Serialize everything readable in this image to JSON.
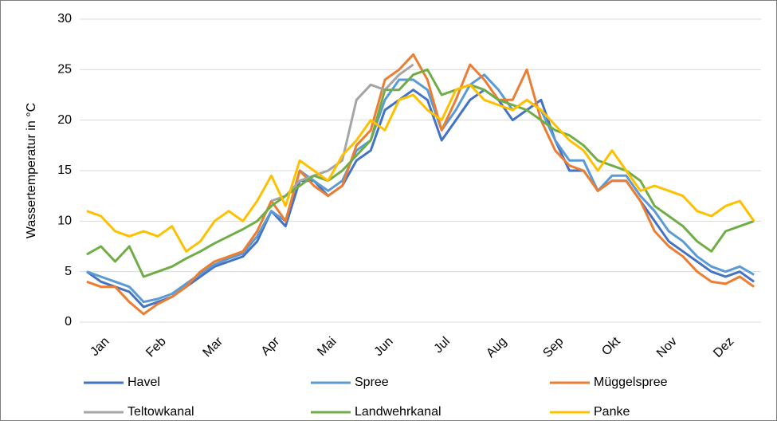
{
  "chart_data": {
    "type": "line",
    "y_label": "Wassertemperatur in °C",
    "categories": [
      null,
      "Jan",
      null,
      null,
      null,
      "Feb",
      null,
      null,
      null,
      "Mar",
      null,
      null,
      null,
      "Apr",
      null,
      null,
      null,
      "Mai",
      null,
      null,
      null,
      "Jun",
      null,
      null,
      null,
      "Jul",
      null,
      null,
      null,
      "Aug",
      null,
      null,
      null,
      "Sep",
      null,
      null,
      null,
      "Okt",
      null,
      null,
      null,
      "Nov",
      null,
      null,
      null,
      "Dez",
      null,
      null
    ],
    "ylim": [
      0,
      30
    ],
    "yticks": [
      0,
      5,
      10,
      15,
      20,
      25,
      30
    ],
    "grid": true,
    "series": [
      {
        "name": "Havel",
        "color": "#4472c4",
        "values": [
          5,
          4,
          3.5,
          3,
          1.5,
          2,
          2.5,
          3.5,
          4.5,
          5.5,
          6,
          6.5,
          8,
          11,
          9.5,
          14,
          14,
          12.5,
          13.5,
          16,
          17,
          21,
          22,
          23,
          22,
          18,
          20,
          22,
          23,
          22,
          20,
          21,
          22,
          18,
          15,
          15,
          13,
          14,
          14,
          12,
          10,
          8,
          7,
          6,
          5,
          4.5,
          5,
          4
        ]
      },
      {
        "name": "Spree",
        "color": "#5b9bd5",
        "values": [
          5,
          4.5,
          4,
          3.5,
          2,
          2.3,
          2.8,
          3.8,
          4.8,
          5.7,
          6.3,
          6.8,
          8.5,
          11,
          10,
          15,
          14,
          13,
          14,
          17,
          18,
          22,
          24,
          24,
          23,
          19,
          21,
          23.5,
          24.5,
          23,
          21,
          22,
          21,
          18,
          16,
          16,
          13,
          14.5,
          14.5,
          12.5,
          11,
          9,
          8,
          6.5,
          5.5,
          5,
          5.5,
          4.7
        ]
      },
      {
        "name": "Müggelspree",
        "color": "#ed7d31",
        "values": [
          4,
          3.5,
          3.5,
          2,
          0.8,
          1.8,
          2.5,
          3.5,
          5,
          6,
          6.5,
          7,
          9,
          12,
          10,
          15,
          13.5,
          12.5,
          13.5,
          17.5,
          19,
          24,
          25,
          26.5,
          24,
          19,
          22,
          25.5,
          24,
          22,
          22,
          25,
          20,
          17,
          15.5,
          15,
          13,
          14,
          14,
          12,
          9,
          7.5,
          6.5,
          5,
          4,
          3.8,
          4.5,
          3.5
        ]
      },
      {
        "name": "Teltowkanal",
        "color": "#a5a5a5",
        "values": [
          null,
          null,
          null,
          null,
          null,
          null,
          null,
          null,
          null,
          null,
          null,
          null,
          null,
          12,
          12.5,
          14,
          14.5,
          15,
          16,
          22,
          23.5,
          23,
          24.5,
          25.5,
          null,
          null,
          null,
          null,
          null,
          null,
          null,
          null,
          null,
          null,
          null,
          null,
          null,
          null,
          null,
          null,
          null,
          null,
          null,
          null,
          null,
          null,
          null,
          null
        ]
      },
      {
        "name": "Landwehrkanal",
        "color": "#70ad47",
        "values": [
          6.7,
          7.5,
          6,
          7.5,
          4.5,
          5,
          5.5,
          6.3,
          7,
          7.8,
          8.5,
          9.2,
          10,
          11.5,
          12.5,
          13.5,
          14.5,
          14,
          15,
          16.5,
          18,
          23,
          23,
          24.5,
          25,
          22.5,
          23,
          23.5,
          23,
          22,
          21.5,
          21,
          20,
          19,
          18.5,
          17.5,
          16,
          15.5,
          15,
          14,
          11.5,
          10.5,
          9.5,
          8,
          7,
          9,
          9.5,
          10
        ]
      },
      {
        "name": "Panke",
        "color": "#ffc000",
        "values": [
          11,
          10.5,
          9,
          8.5,
          9,
          8.5,
          9.5,
          7,
          8,
          10,
          11,
          10,
          12,
          14.5,
          11.5,
          16,
          15,
          14,
          16.5,
          18,
          20,
          19,
          22,
          22.5,
          21,
          20,
          23,
          23.5,
          22,
          21.5,
          21,
          22,
          21,
          19.5,
          18,
          17,
          15,
          17,
          15,
          13,
          13.5,
          13,
          12.5,
          11,
          10.5,
          11.5,
          12,
          10
        ]
      }
    ]
  }
}
